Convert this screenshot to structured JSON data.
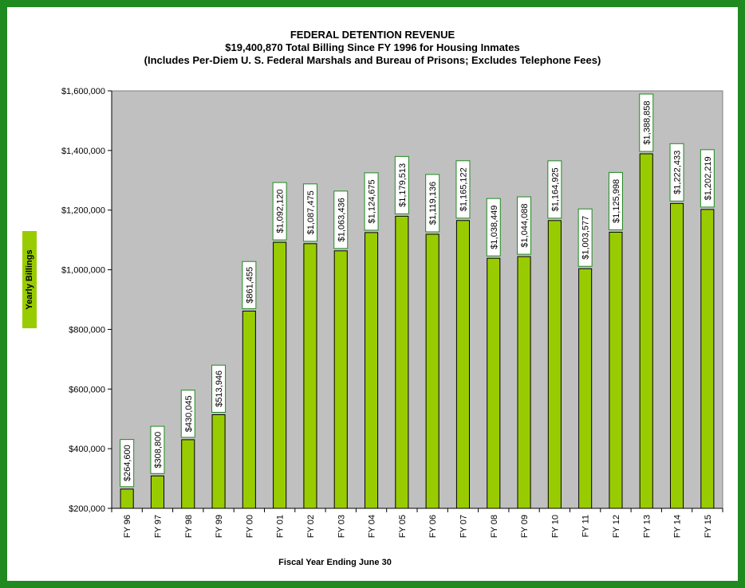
{
  "colors": {
    "frame": "#1f8a1f",
    "plot_background": "#c0c0c0",
    "bar_fill": "#99cc00",
    "bar_stroke": "#000000",
    "label_box_border": "#1f8a1f",
    "ylabel_background": "#99cc00"
  },
  "chart_data": {
    "type": "bar",
    "title": "FEDERAL DETENTION REVENUE",
    "subtitle": "$19,400,870 Total Billing Since FY 1996 for Housing Inmates",
    "subtitle2": "(Includes Per-Diem U. S. Federal Marshals and Bureau of Prisons; Excludes Telephone Fees)",
    "xlabel": "Fiscal Year Ending June 30",
    "ylabel": "Yearly Billings",
    "ylim": [
      200000,
      1600000
    ],
    "yticks": [
      200000,
      400000,
      600000,
      800000,
      1000000,
      1200000,
      1400000,
      1600000
    ],
    "ytick_labels": [
      "$200,000",
      "$400,000",
      "$600,000",
      "$800,000",
      "$1,000,000",
      "$1,200,000",
      "$1,400,000",
      "$1,600,000"
    ],
    "grid": false,
    "categories": [
      "FY 96",
      "FY 97",
      "FY 98",
      "FY 99",
      "FY 00",
      "FY 01",
      "FY 02",
      "FY 03",
      "FY 04",
      "FY 05",
      "FY 06",
      "FY 07",
      "FY 08",
      "FY 09",
      "FY 10",
      "FY 11",
      "FY 12",
      "FY 13",
      "FY 14",
      "FY 15"
    ],
    "values": [
      264600,
      308800,
      430045,
      513946,
      861455,
      1092120,
      1087475,
      1063436,
      1124675,
      1179513,
      1119136,
      1165122,
      1038449,
      1044088,
      1164925,
      1003577,
      1125998,
      1388858,
      1222433,
      1202219
    ],
    "data_labels": [
      "$264,600",
      "$308,800",
      "$430,045",
      "$513,946",
      "$861,455",
      "$1,092,120",
      "$1,087,475",
      "$1,063,436",
      "$1,124,675",
      "$1,179,513",
      "$1,119,136",
      "$1,165,122",
      "$1,038,449",
      "$1,044,088",
      "$1,164,925",
      "$1,003,577",
      "$1,125,998",
      "$1,388,858",
      "$1,222,433",
      "$1,202,219"
    ]
  }
}
